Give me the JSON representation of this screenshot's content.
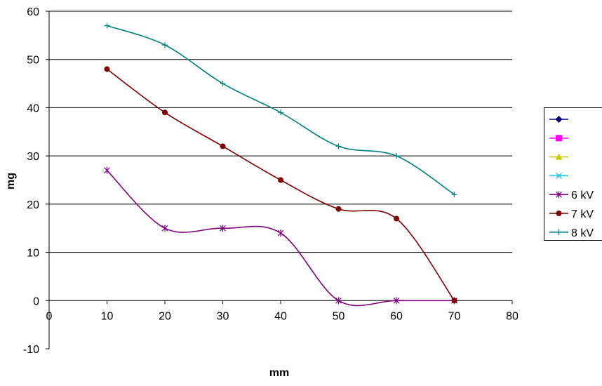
{
  "chart_data": {
    "type": "line",
    "title": "",
    "xlabel": "mm",
    "ylabel": "mg",
    "xlim": [
      0,
      80
    ],
    "ylim": [
      -10,
      60
    ],
    "xticks": [
      0,
      10,
      20,
      30,
      40,
      50,
      60,
      70,
      80
    ],
    "yticks": [
      -10,
      0,
      10,
      20,
      30,
      40,
      50,
      60
    ],
    "grid": "horizontal",
    "legend_position": "right",
    "smoothed": true,
    "legend_empty_series": [
      {
        "name": "",
        "color": "#000080",
        "marker": "diamond"
      },
      {
        "name": "",
        "color": "#ff00ff",
        "marker": "square"
      },
      {
        "name": "",
        "color": "#cccc00",
        "marker": "triangle"
      },
      {
        "name": "",
        "color": "#00ccff",
        "marker": "x"
      }
    ],
    "series": [
      {
        "name": "6 kV",
        "color": "#800080",
        "marker": "star",
        "x": [
          10,
          20,
          30,
          40,
          50,
          60,
          70
        ],
        "y": [
          27,
          15,
          15,
          14,
          0,
          0,
          0
        ]
      },
      {
        "name": "7 kV",
        "color": "#800000",
        "marker": "circle",
        "x": [
          10,
          20,
          30,
          40,
          50,
          60,
          70
        ],
        "y": [
          48,
          39,
          32,
          25,
          19,
          17,
          0
        ]
      },
      {
        "name": "8 kV",
        "color": "#008080",
        "marker": "plus",
        "x": [
          10,
          20,
          30,
          40,
          50,
          60,
          70
        ],
        "y": [
          57,
          53,
          45,
          39,
          32,
          30,
          22
        ]
      }
    ]
  }
}
